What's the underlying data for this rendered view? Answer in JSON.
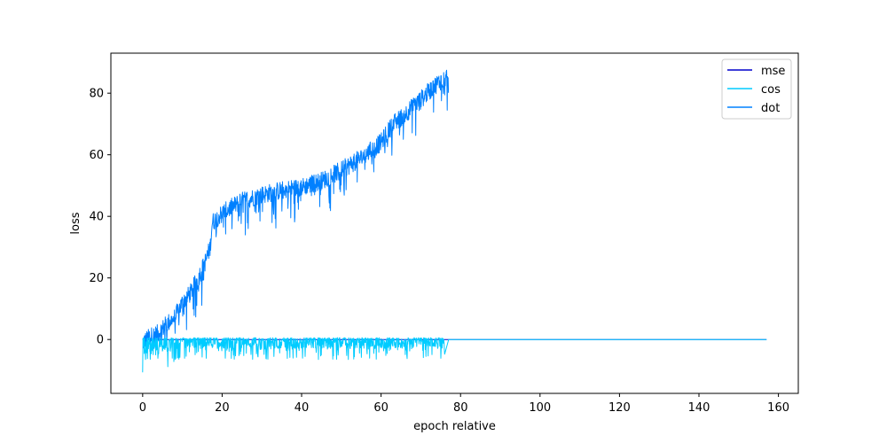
{
  "chart_data": {
    "type": "line",
    "title": "",
    "xlabel": "epoch relative",
    "ylabel": "loss",
    "xlim": [
      -8,
      165
    ],
    "ylim": [
      -17.5,
      93
    ],
    "xticks": [
      0,
      20,
      40,
      60,
      80,
      100,
      120,
      140,
      160
    ],
    "yticks": [
      0,
      20,
      40,
      60,
      80
    ],
    "grid": false,
    "legend_position": "top-right",
    "series": [
      {
        "name": "mse",
        "color": "#0000cc",
        "x": [
          0,
          157
        ],
        "y": [
          0,
          0
        ]
      },
      {
        "name": "cos",
        "color": "#00ccff",
        "x": [
          0,
          2,
          4,
          8,
          20,
          40,
          60,
          76,
          77,
          100,
          157
        ],
        "y": [
          -2,
          -3,
          -4,
          -2,
          -1.5,
          -1.5,
          -1.5,
          -1.5,
          0,
          0,
          0
        ]
      },
      {
        "name": "dot",
        "color": "#0080ff",
        "x": [
          0,
          2,
          4,
          6,
          8,
          10,
          12,
          14,
          16,
          17,
          17.5,
          20,
          25,
          30,
          35,
          40,
          45,
          50,
          55,
          60,
          63,
          65,
          70,
          74,
          77
        ],
        "y": [
          -1,
          1,
          2,
          5,
          7,
          12,
          15,
          20,
          26,
          30,
          38,
          41,
          45,
          47,
          48.5,
          49.5,
          51.5,
          55,
          59,
          64,
          70,
          72,
          78,
          83,
          86
        ]
      }
    ]
  }
}
